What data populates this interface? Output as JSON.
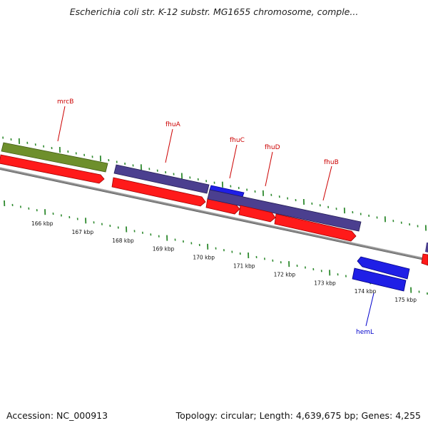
{
  "title": "Escherichia coli str. K-12 substr. MG1655 chromosome, comple...",
  "footer": {
    "accession": "Accession: NC_000913",
    "summary": "Topology: circular; Length: 4,639,675 bp; Genes: 4,255"
  },
  "colors": {
    "backbone": "#7f7f7f",
    "tick": "#2f8a2f",
    "forward_gene": "#ff1a1a",
    "cds_feature": "#4b3f8f",
    "highlight_cds": "#1f1fe6",
    "other_feature": "#6e8f2c",
    "label_red": "#cc0000",
    "label_blue": "#0000cc"
  },
  "scale": {
    "unit": "kbp",
    "tick_labels": [
      "166 kbp",
      "167 kbp",
      "168 kbp",
      "169 kbp",
      "170 kbp",
      "171 kbp",
      "172 kbp",
      "173 kbp",
      "174 kbp",
      "175 kbp"
    ]
  },
  "genes": [
    {
      "name": "mrcB",
      "strand": "forward",
      "label_color": "red"
    },
    {
      "name": "fhuA",
      "strand": "forward",
      "label_color": "red"
    },
    {
      "name": "fhuC",
      "strand": "forward",
      "label_color": "red"
    },
    {
      "name": "fhuD",
      "strand": "forward",
      "label_color": "red"
    },
    {
      "name": "fhuB",
      "strand": "forward",
      "label_color": "red"
    },
    {
      "name": "hemL",
      "strand": "reverse",
      "label_color": "blue"
    }
  ]
}
